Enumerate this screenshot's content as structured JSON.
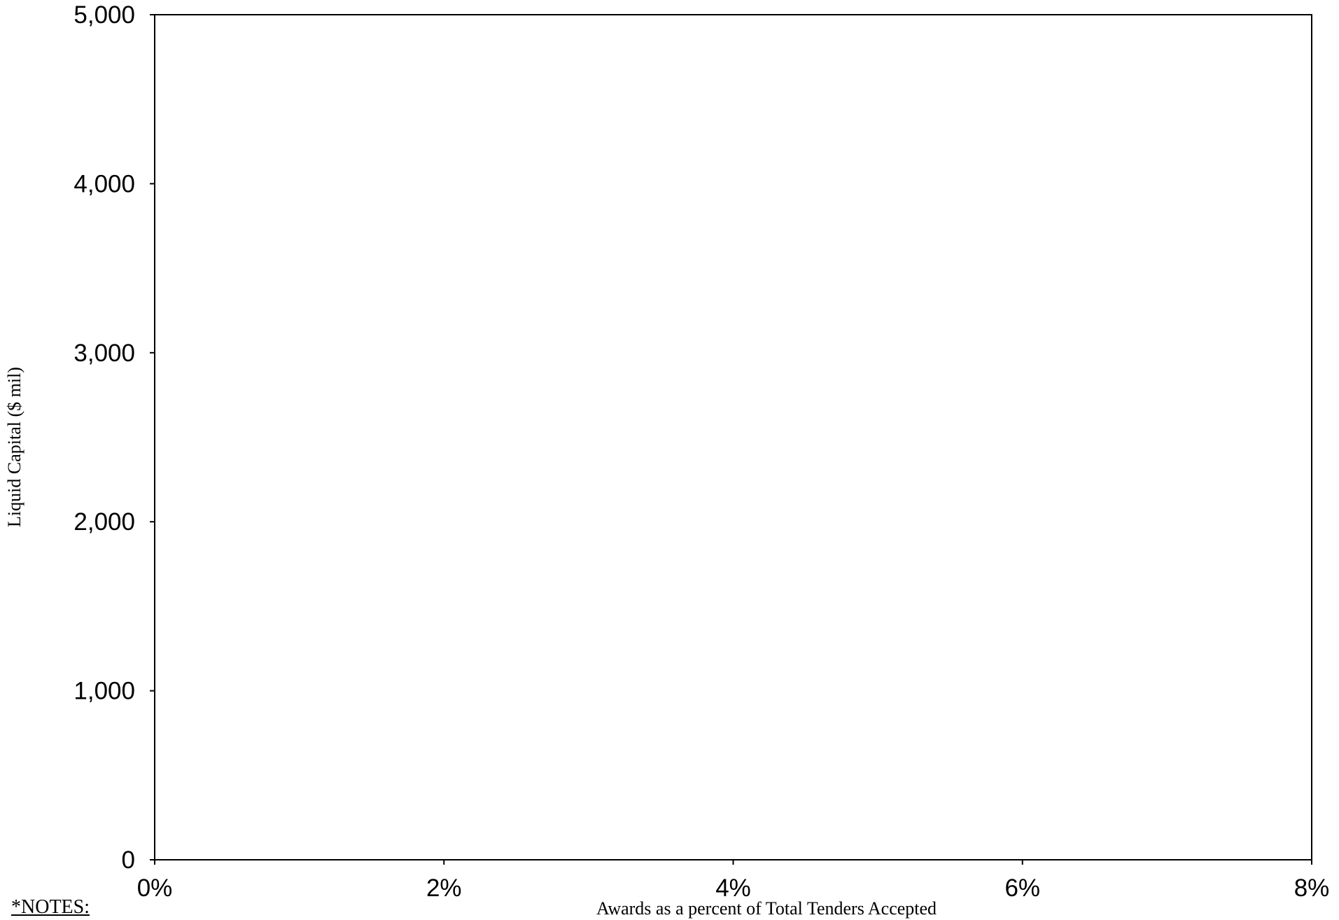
{
  "chart_data": {
    "type": "scatter",
    "title": "",
    "xlabel": "Awards as a percent of Total Tenders Accepted",
    "ylabel": "Liquid Capital ($ mil)",
    "xlim": [
      0,
      8
    ],
    "ylim": [
      0,
      5000
    ],
    "x_ticks": [
      0,
      2,
      4,
      6,
      8
    ],
    "x_tick_labels": [
      "0%",
      "2%",
      "4%",
      "6%",
      "8%"
    ],
    "y_ticks": [
      0,
      1000,
      2000,
      3000,
      4000,
      5000
    ],
    "y_tick_labels": [
      "0",
      "1,000",
      "2,000",
      "3,000",
      "4,000",
      "5,000"
    ],
    "grid": false,
    "legend": "none",
    "series": []
  },
  "notes": {
    "label": "*NOTES:"
  },
  "colors": {
    "axis": "#000000",
    "background": "#ffffff"
  }
}
